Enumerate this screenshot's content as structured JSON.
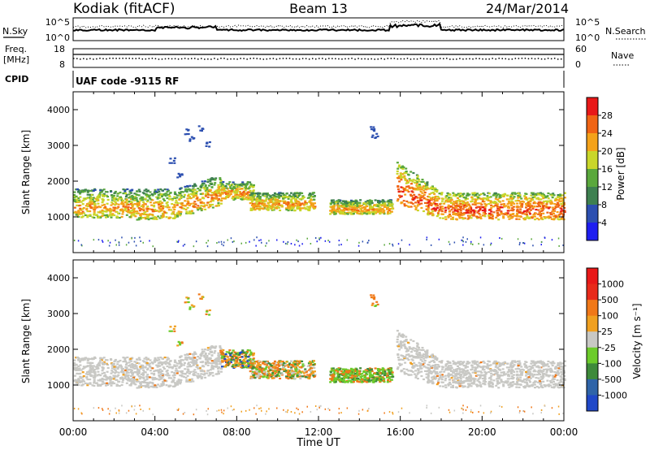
{
  "header": {
    "station": "Kodiak (fitACF)",
    "beam": "Beam 13",
    "date": "24/Mar/2014"
  },
  "top_panels": {
    "nsky_label": "N.Sky",
    "nsky_ticks": [
      "10^5",
      "10^0"
    ],
    "nsearch_label": "N.Search",
    "nsearch_ticks": [
      "10^5",
      "10^0"
    ],
    "freq_label_line1": "Freq.",
    "freq_label_line2": "[MHz]",
    "freq_ticks": [
      "18",
      "8"
    ],
    "nave_label": "Nave",
    "nave_ticks": [
      "60",
      "0"
    ],
    "cpid_label": "CPID",
    "cpid_text": "UAF code -9115 RF"
  },
  "chart_data": [
    {
      "type": "heatmap",
      "name": "power",
      "ylabel": "Slant Range [km]",
      "yticks": [
        "1000",
        "2000",
        "3000",
        "4000"
      ],
      "ylim": [
        0,
        4500
      ],
      "xlim": [
        0,
        24
      ],
      "colorbar": {
        "label": "Power [dB]",
        "ticks": [
          "4",
          "8",
          "12",
          "16",
          "20",
          "24",
          "28"
        ],
        "colors": [
          "#1e1ef0",
          "#2c4fb0",
          "#3e8050",
          "#5aa83c",
          "#c9d62a",
          "#f4a21a",
          "#f06414",
          "#e81818"
        ]
      }
    },
    {
      "type": "heatmap",
      "name": "velocity",
      "ylabel": "Slant Range [km]",
      "yticks": [
        "1000",
        "2000",
        "3000",
        "4000"
      ],
      "ylim": [
        0,
        4500
      ],
      "xlim": [
        0,
        24
      ],
      "xlabel": "Time UT",
      "xticks": [
        "00:00",
        "04:00",
        "08:00",
        "12:00",
        "16:00",
        "20:00",
        "00:00"
      ],
      "colorbar": {
        "label": "Velocity [m s⁻¹]",
        "ticks": [
          "1000",
          "500",
          "100",
          "25",
          "-25",
          "-100",
          "-500",
          "-1000"
        ],
        "colors": [
          "#2048c8",
          "#2f64a8",
          "#3e8a3a",
          "#6ccb2a",
          "#c8c8c4",
          "#f0a020",
          "#f07818",
          "#e82a1a",
          "#e81818"
        ]
      }
    }
  ]
}
